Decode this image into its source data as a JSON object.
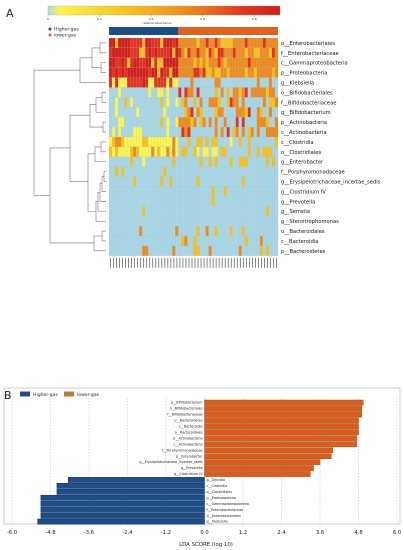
{
  "chart_data": [
    {
      "type": "heatmap",
      "panel_label": "A",
      "colorbar": {
        "label": "relative abundance",
        "ticks": [
          "0",
          "0.2",
          "0.4",
          "0.6",
          "0.8"
        ],
        "range": [
          0,
          0.9
        ],
        "colors": [
          "#a9d6e5",
          "#fff44f",
          "#f7c11a",
          "#f08a1c",
          "#e4321e",
          "#d21f1b"
        ]
      },
      "legend": [
        {
          "name": "Higher-gas",
          "color": "#1d4e89"
        },
        {
          "name": "lower-gas",
          "color": "#e0621f"
        }
      ],
      "group_sizes": [
        23,
        33
      ],
      "rows": [
        "o__Enterobacteriales",
        "f__Enterobacteriaceae",
        "c__Gammaproteobacteria",
        "p__Proteobacteria",
        "g__Klebsiella",
        "o__Bifidobacteriales",
        "f__Bifidobacteriaceae",
        "g__Bifidobacterium",
        "p__Actinobacteria",
        "c__Actinobacteria",
        "c__Clostridia",
        "o__Clostridiales",
        "g__Enterobacter",
        "f__Porphyromonadaceae",
        "g__Erysipelotrichaceae_incertae_sedis",
        "g__Clostridium IV",
        "g__Prevotella",
        "g__Serratia",
        "g__Stenotrophomonas",
        "o__Bacteroidales",
        "c__Bacteroidia",
        "p__Bacteroidetes"
      ]
    },
    {
      "type": "bar",
      "orientation": "horizontal",
      "panel_label": "B",
      "xlabel": "LDA SCORE (log 10)",
      "xlim": [
        -6.0,
        6.0
      ],
      "xticks": [
        "-6.0",
        "-4.8",
        "-3.6",
        "-2.4",
        "-1.2",
        "0.0",
        "1.2",
        "2.4",
        "3.6",
        "4.8",
        "6.0"
      ],
      "legend": [
        {
          "name": "Higher-gas",
          "color": "#1d4e89"
        },
        {
          "name": "lower-gas",
          "color": "#b07f2c"
        }
      ],
      "bars": [
        {
          "label": "g__Bifidobacterium",
          "value": 4.95,
          "group": "lower-gas"
        },
        {
          "label": "o__Bifidobacteriales",
          "value": 4.9,
          "group": "lower-gas"
        },
        {
          "label": "f__Bifidobacteriaceae",
          "value": 4.9,
          "group": "lower-gas"
        },
        {
          "label": "p__Bacteroidetes",
          "value": 4.8,
          "group": "lower-gas"
        },
        {
          "label": "c__Bacteroidia",
          "value": 4.8,
          "group": "lower-gas"
        },
        {
          "label": "o__Bacteroidales",
          "value": 4.8,
          "group": "lower-gas"
        },
        {
          "label": "p__Actinobacteria",
          "value": 4.75,
          "group": "lower-gas"
        },
        {
          "label": "c__Actinobacteria",
          "value": 4.75,
          "group": "lower-gas"
        },
        {
          "label": "f__Porphyromonadaceae",
          "value": 4.0,
          "group": "lower-gas"
        },
        {
          "label": "g__Enterobacter",
          "value": 3.95,
          "group": "lower-gas"
        },
        {
          "label": "g__Erysipelotrichaceae_incertae_sedis",
          "value": 3.6,
          "group": "lower-gas"
        },
        {
          "label": "g__Prevotella",
          "value": 3.4,
          "group": "lower-gas"
        },
        {
          "label": "g__Clostridium IV",
          "value": 3.3,
          "group": "lower-gas"
        },
        {
          "label": "g__Serratia",
          "value": -4.25,
          "group": "Higher-gas"
        },
        {
          "label": "c__Clostridia",
          "value": -4.6,
          "group": "Higher-gas"
        },
        {
          "label": "o__Clostridiales",
          "value": -4.6,
          "group": "Higher-gas"
        },
        {
          "label": "p__Proteobacteria",
          "value": -5.1,
          "group": "Higher-gas"
        },
        {
          "label": "c__Gammaproteobacteria",
          "value": -5.1,
          "group": "Higher-gas"
        },
        {
          "label": "f__Enterobacteriaceae",
          "value": -5.1,
          "group": "Higher-gas"
        },
        {
          "label": "o__Enterobacteriales",
          "value": -5.1,
          "group": "Higher-gas"
        },
        {
          "label": "g__Klebsiella",
          "value": -5.2,
          "group": "Higher-gas"
        }
      ]
    }
  ]
}
